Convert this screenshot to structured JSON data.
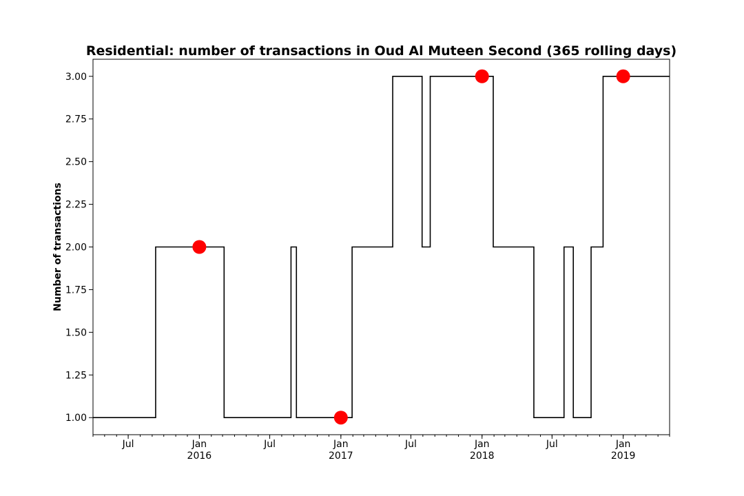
{
  "chart_data": {
    "type": "line",
    "title": "Residential: number of transactions in Oud Al Muteen Second (365 rolling days)",
    "xlabel": "",
    "ylabel": "Number of transactions",
    "xlim": [
      "2015-04-01",
      "2019-05-01"
    ],
    "ylim": [
      0.9,
      3.1
    ],
    "grid": false,
    "yticks": [
      {
        "value": 1.0,
        "label": "1.00"
      },
      {
        "value": 1.25,
        "label": "1.25"
      },
      {
        "value": 1.5,
        "label": "1.50"
      },
      {
        "value": 1.75,
        "label": "1.75"
      },
      {
        "value": 2.0,
        "label": "2.00"
      },
      {
        "value": 2.25,
        "label": "2.25"
      },
      {
        "value": 2.5,
        "label": "2.50"
      },
      {
        "value": 2.75,
        "label": "2.75"
      },
      {
        "value": 3.0,
        "label": "3.00"
      }
    ],
    "xticks_major": [
      {
        "date": "2015-07-01",
        "label": "Jul",
        "label2": ""
      },
      {
        "date": "2016-01-01",
        "label": "Jan",
        "label2": "2016"
      },
      {
        "date": "2016-07-01",
        "label": "Jul",
        "label2": ""
      },
      {
        "date": "2017-01-01",
        "label": "Jan",
        "label2": "2017"
      },
      {
        "date": "2017-07-01",
        "label": "Jul",
        "label2": ""
      },
      {
        "date": "2018-01-01",
        "label": "Jan",
        "label2": "2018"
      },
      {
        "date": "2018-07-01",
        "label": "Jul",
        "label2": ""
      },
      {
        "date": "2019-01-01",
        "label": "Jan",
        "label2": "2019"
      }
    ],
    "series": [
      {
        "color": "#000000",
        "step": "post",
        "points": [
          {
            "x": "2015-04-01",
            "y": 1
          },
          {
            "x": "2015-09-10",
            "y": 2
          },
          {
            "x": "2016-03-05",
            "y": 1
          },
          {
            "x": "2016-08-25",
            "y": 2
          },
          {
            "x": "2016-09-08",
            "y": 1
          },
          {
            "x": "2017-01-30",
            "y": 2
          },
          {
            "x": "2017-05-15",
            "y": 3
          },
          {
            "x": "2017-07-30",
            "y": 2
          },
          {
            "x": "2017-08-20",
            "y": 3
          },
          {
            "x": "2018-01-30",
            "y": 2
          },
          {
            "x": "2018-05-15",
            "y": 1
          },
          {
            "x": "2018-08-01",
            "y": 2
          },
          {
            "x": "2018-08-25",
            "y": 1
          },
          {
            "x": "2018-10-10",
            "y": 2
          },
          {
            "x": "2018-11-10",
            "y": 3
          },
          {
            "x": "2019-05-01",
            "y": 3
          }
        ]
      }
    ],
    "markers": {
      "color": "#ff0000",
      "points": [
        {
          "x": "2016-01-01",
          "y": 2
        },
        {
          "x": "2017-01-01",
          "y": 1
        },
        {
          "x": "2018-01-01",
          "y": 3
        },
        {
          "x": "2019-01-01",
          "y": 3
        }
      ]
    }
  }
}
